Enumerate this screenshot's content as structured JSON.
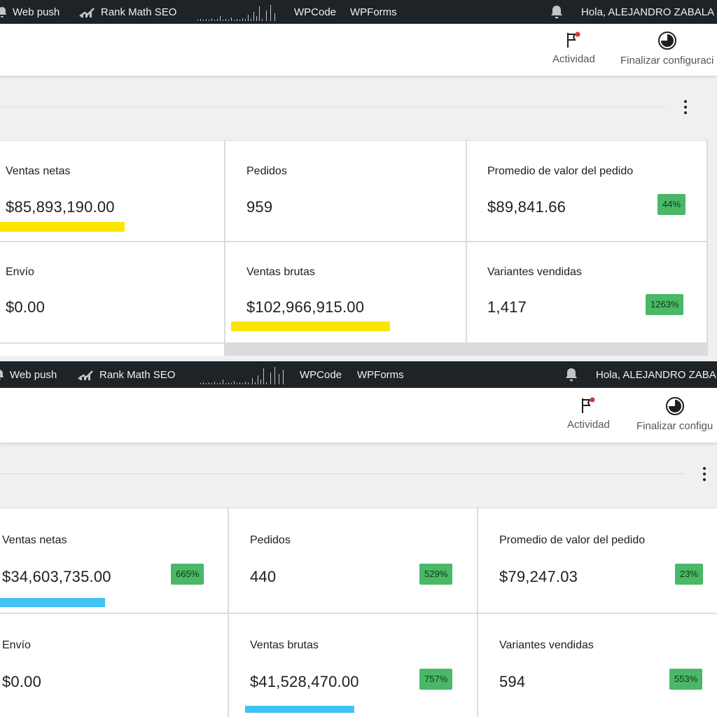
{
  "colors": {
    "adminbar_bg": "#1d2327",
    "highlight_top": "#fbe600",
    "highlight_bottom": "#3fc3f4",
    "delta_badge": "#4ab866"
  },
  "panel_a": {
    "adminbar": {
      "web_push": "Web push",
      "rank_math": "Rank Math SEO",
      "wpcode": "WPCode",
      "wpforms": "WPForms",
      "greeting": "Hola, ALEJANDRO ZABALA"
    },
    "header": {
      "activity": "Actividad",
      "finish_setup": "Finalizar configuraci"
    },
    "stats": {
      "net_sales_label": "Ventas netas",
      "net_sales_value": "$85,893,190.00",
      "orders_label": "Pedidos",
      "orders_value": "959",
      "aov_label": "Promedio de valor del pedido",
      "aov_value": "$89,841.66",
      "aov_delta": "44%",
      "shipping_label": "Envío",
      "shipping_value": "$0.00",
      "gross_sales_label": "Ventas brutas",
      "gross_sales_value": "$102,966,915.00",
      "variants_label": "Variantes vendidas",
      "variants_value": "1,417",
      "variants_delta": "1263%"
    }
  },
  "panel_b": {
    "adminbar": {
      "web_push": "Web push",
      "rank_math": "Rank Math SEO",
      "wpcode": "WPCode",
      "wpforms": "WPForms",
      "greeting": "Hola, ALEJANDRO ZABA"
    },
    "header": {
      "activity": "Actividad",
      "finish_setup": "Finalizar configu"
    },
    "stats": {
      "net_sales_label": "Ventas netas",
      "net_sales_value": "$34,603,735.00",
      "net_sales_delta": "665%",
      "orders_label": "Pedidos",
      "orders_value": "440",
      "orders_delta": "529%",
      "aov_label": "Promedio de valor del pedido",
      "aov_value": "$79,247.03",
      "aov_delta": "23%",
      "shipping_label": "Envío",
      "shipping_value": "$0.00",
      "gross_sales_label": "Ventas brutas",
      "gross_sales_value": "$41,528,470.00",
      "gross_sales_delta": "757%",
      "variants_label": "Variantes vendidas",
      "variants_value": "594",
      "variants_delta": "553%"
    }
  }
}
